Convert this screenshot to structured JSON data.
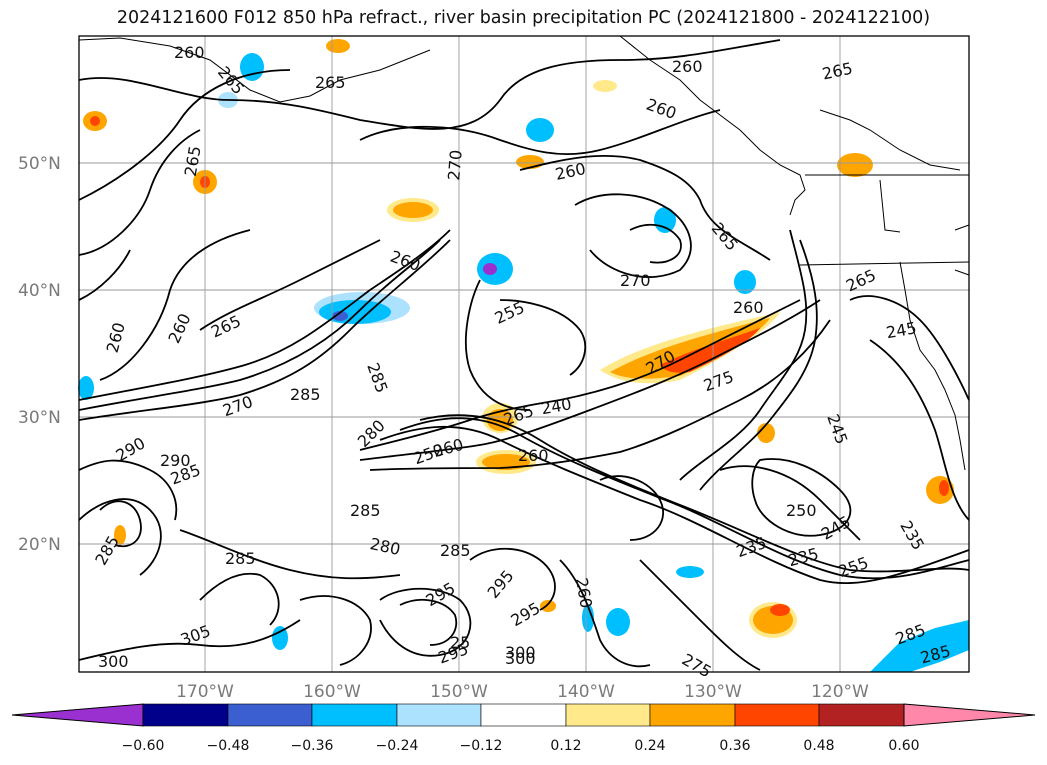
{
  "title": "2024121600 F012 850 hPa refract., river basin precipitation PC (2024121800 - 2024122100)",
  "lat_labels": [
    "50°N",
    "40°N",
    "30°N",
    "20°N"
  ],
  "lon_labels": [
    "170°W",
    "160°W",
    "150°W",
    "140°W",
    "130°W",
    "120°W"
  ],
  "colorbar": {
    "ticks": [
      "−0.60",
      "−0.48",
      "−0.36",
      "−0.24",
      "−0.12",
      "0.12",
      "0.24",
      "0.36",
      "0.48",
      "0.60"
    ],
    "colors": [
      "#9b30d0",
      "#00008b",
      "#3b5fd0",
      "#00bfff",
      "#ade2ff",
      "#ffffff",
      "#ffe98a",
      "#ffa500",
      "#ff4500",
      "#b22222",
      "#ff88aa"
    ]
  },
  "contour_labels": [
    "260",
    "265",
    "265",
    "265",
    "260",
    "270",
    "260",
    "265",
    "260",
    "270",
    "265",
    "260",
    "265",
    "260",
    "260",
    "270",
    "285",
    "285",
    "260",
    "255",
    "280",
    "270",
    "265",
    "245",
    "290",
    "290",
    "285",
    "285",
    "285",
    "280",
    "285",
    "260",
    "240",
    "250",
    "265",
    "275",
    "260",
    "245",
    "250",
    "245",
    "235",
    "235",
    "235",
    "255",
    "285",
    "295",
    "295",
    "295",
    "300",
    "300",
    "305",
    "260",
    "275",
    "300",
    "295",
    "285",
    "25",
    "285"
  ]
}
